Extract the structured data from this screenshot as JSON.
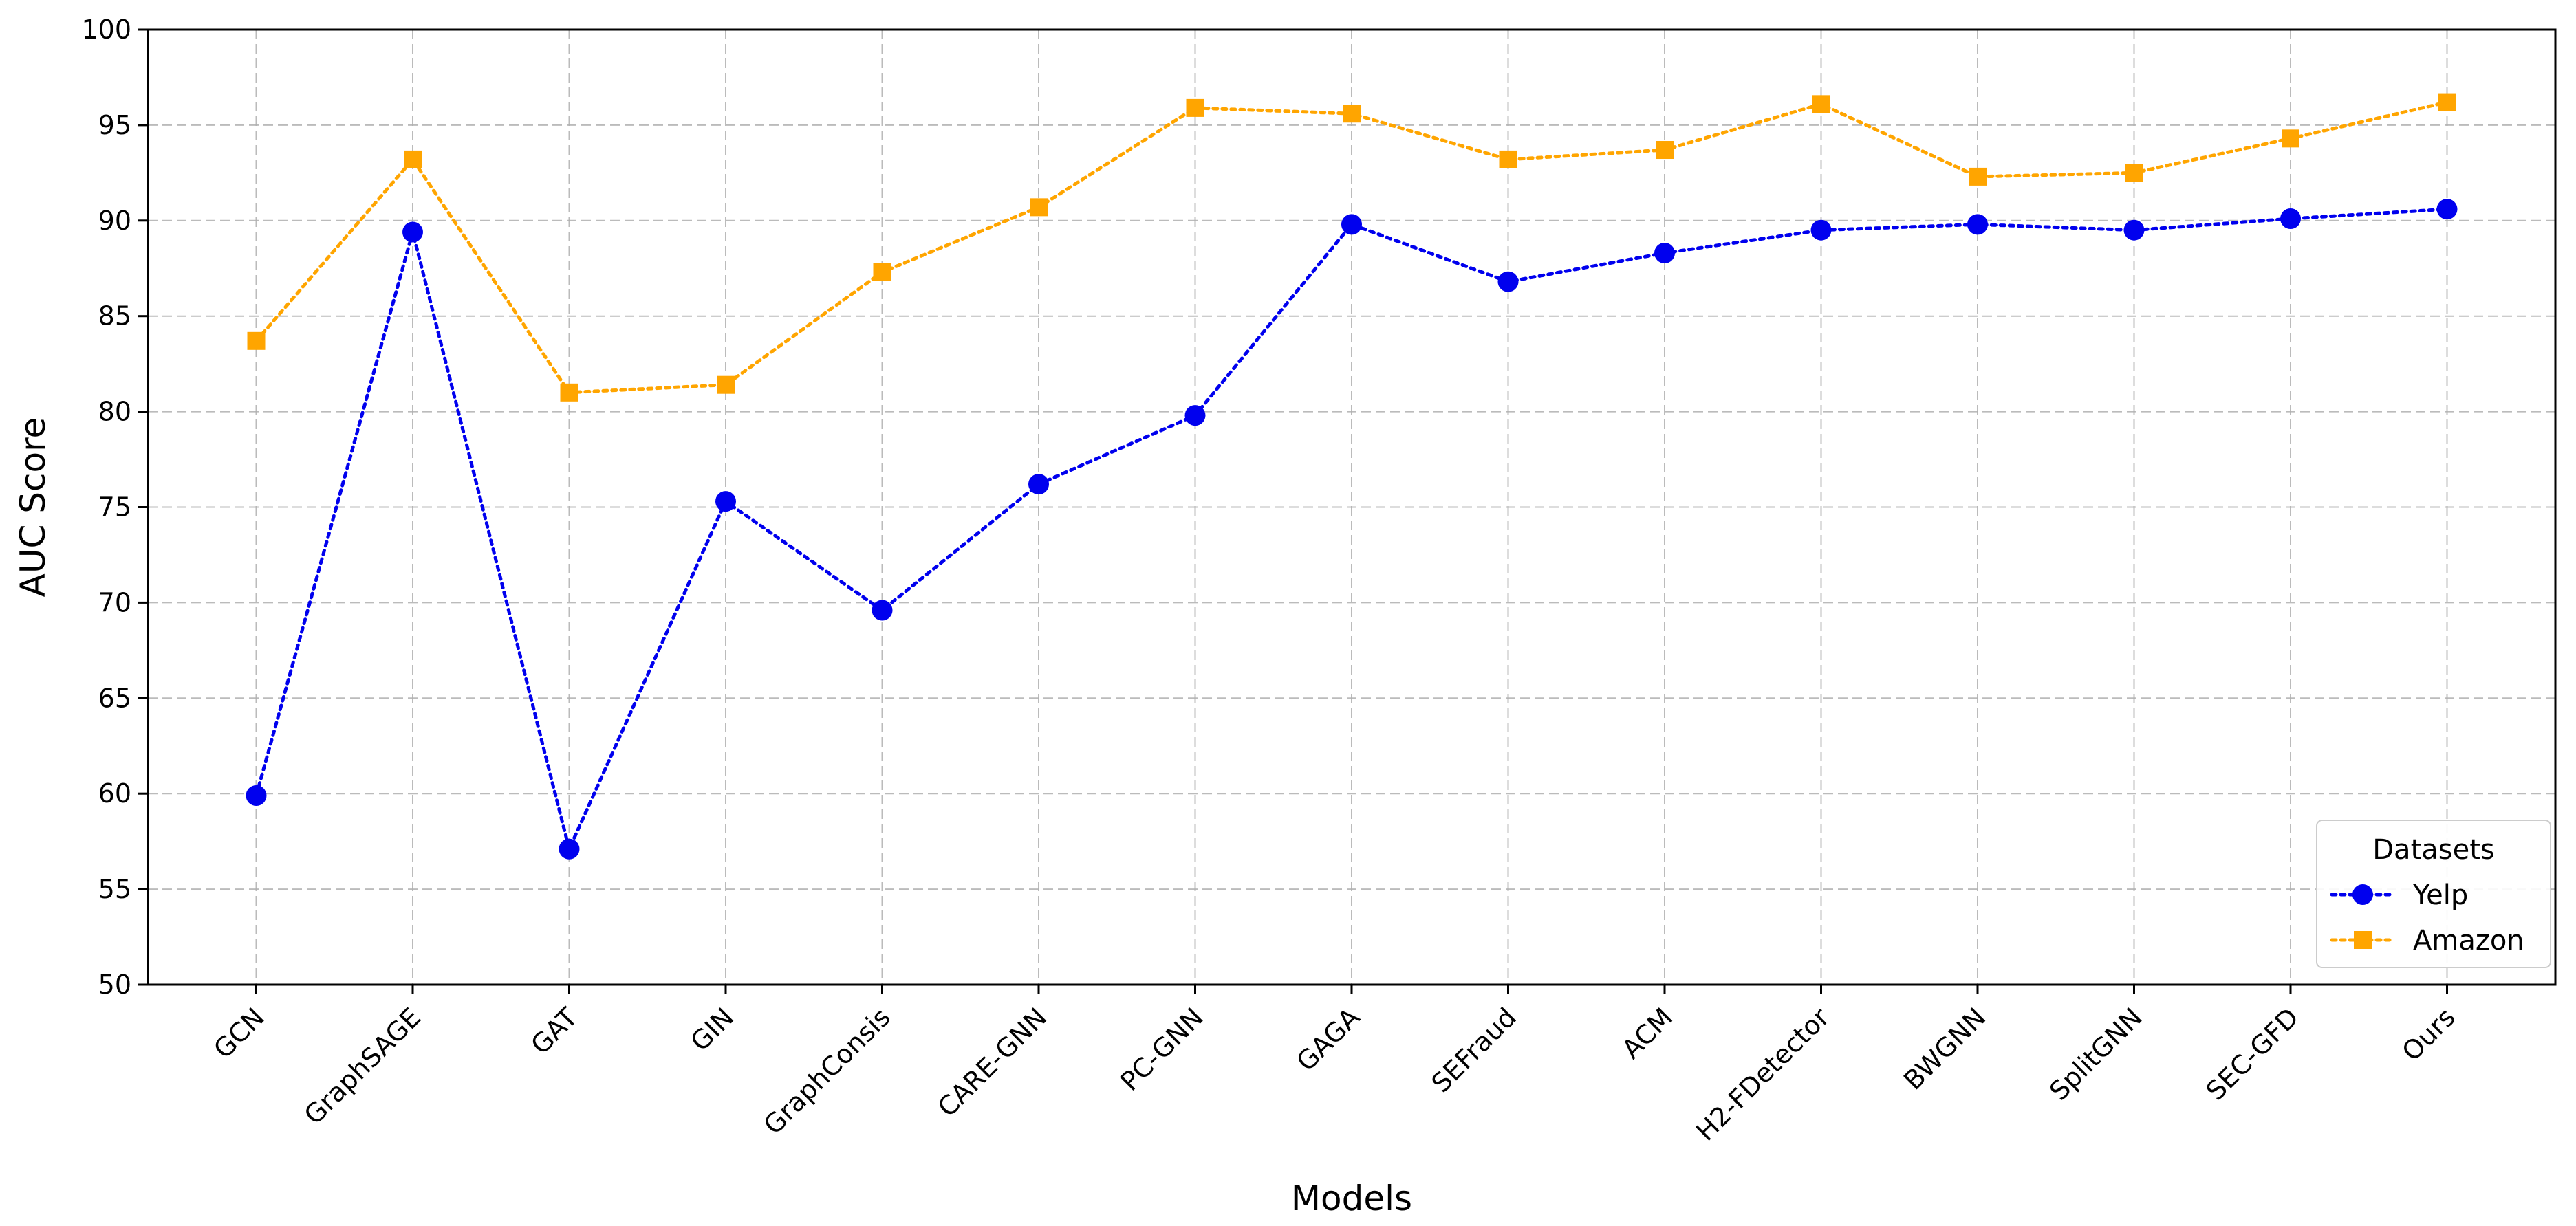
{
  "chart_data": {
    "type": "line",
    "categories": [
      "GCN",
      "GraphSAGE",
      "GAT",
      "GIN",
      "GraphConsis",
      "CARE-GNN",
      "PC-GNN",
      "GAGA",
      "SEFraud",
      "ACM",
      "H2-FDetector",
      "BWGNN",
      "SplitGNN",
      "SEC-GFD",
      "Ours"
    ],
    "series": [
      {
        "name": "Yelp",
        "color": "#0000ee",
        "marker": "circle",
        "line_style": "dotted",
        "values": [
          59.9,
          89.4,
          57.1,
          75.3,
          69.6,
          76.2,
          79.8,
          89.8,
          86.8,
          88.3,
          89.5,
          89.8,
          89.5,
          90.1,
          90.6
        ]
      },
      {
        "name": "Amazon",
        "color": "#ffa500",
        "marker": "square",
        "line_style": "dotted",
        "values": [
          83.7,
          93.2,
          81.0,
          81.4,
          87.3,
          90.7,
          95.9,
          95.6,
          93.2,
          93.7,
          96.1,
          92.3,
          92.5,
          94.3,
          96.2
        ]
      }
    ],
    "xlabel": "Models",
    "ylabel": "AUC Score",
    "ylim": [
      50,
      100
    ],
    "yticks": [
      50,
      55,
      60,
      65,
      70,
      75,
      80,
      85,
      90,
      95,
      100
    ],
    "grid": true,
    "legend": {
      "title": "Datasets",
      "position": "lower-right"
    }
  }
}
